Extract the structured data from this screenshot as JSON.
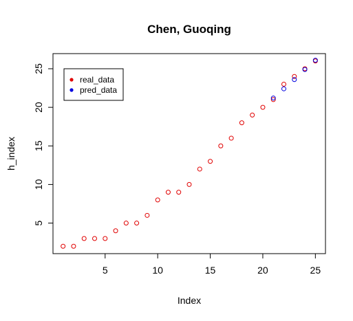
{
  "chart_data": {
    "type": "scatter",
    "title": "Chen, Guoqing",
    "xlabel": "Index",
    "ylabel": "h_index",
    "xlim": [
      0.04,
      25.96
    ],
    "ylim": [
      1.04,
      26.96
    ],
    "x_ticks": [
      "5",
      "10",
      "15",
      "20",
      "25"
    ],
    "y_ticks": [
      "5",
      "10",
      "15",
      "20",
      "25"
    ],
    "grid": false,
    "legend_position": "top-left",
    "series": [
      {
        "name": "real_data",
        "color": "#e00000",
        "marker": "open-circle",
        "x": [
          1,
          2,
          3,
          4,
          5,
          6,
          7,
          8,
          9,
          10,
          11,
          12,
          13,
          14,
          15,
          16,
          17,
          18,
          19,
          20,
          21,
          22,
          23,
          24,
          25
        ],
        "y": [
          2,
          2,
          3,
          3,
          3,
          4,
          5,
          5,
          6,
          8,
          9,
          9,
          10,
          12,
          13,
          15,
          16,
          18,
          19,
          20,
          21,
          23,
          24,
          25,
          26
        ]
      },
      {
        "name": "pred_data",
        "color": "#0000e0",
        "marker": "open-circle",
        "x": [
          21,
          22,
          23,
          24,
          25
        ],
        "y": [
          21.2,
          22.4,
          23.6,
          24.9,
          26.1
        ]
      }
    ]
  }
}
